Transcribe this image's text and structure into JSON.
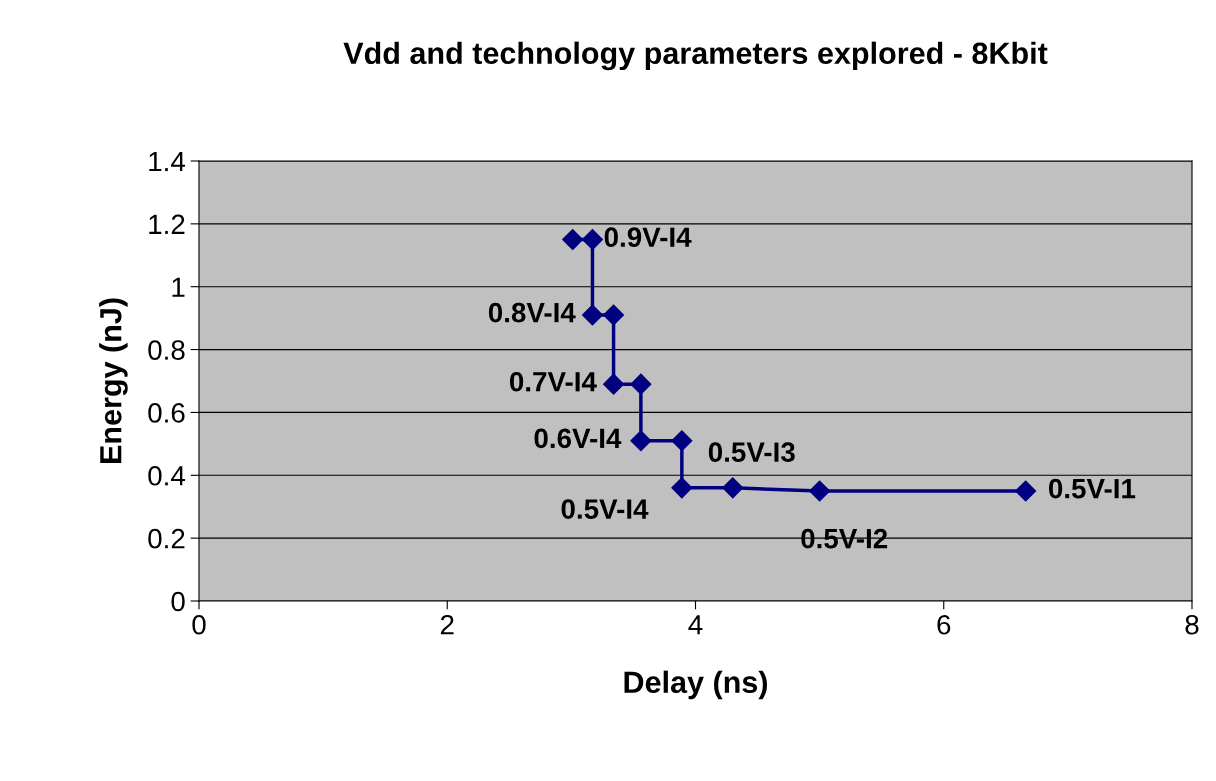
{
  "chart_data": {
    "type": "line",
    "title": "Vdd and technology parameters explored - 8Kbit",
    "xlabel": "Delay (ns)",
    "ylabel": "Energy (nJ)",
    "series": [
      {
        "color": "#000080",
        "x": [
          3.01,
          3.17,
          3.17,
          3.34,
          3.34,
          3.56,
          3.56,
          3.89,
          3.89,
          4.3,
          5.0,
          6.66
        ],
        "values": [
          1.15,
          1.15,
          0.91,
          0.91,
          0.69,
          0.69,
          0.51,
          0.51,
          0.36,
          0.36,
          0.35,
          0.35
        ]
      }
    ],
    "marker": "diamond",
    "xlim": [
      0,
      8
    ],
    "ylim": [
      0,
      1.4
    ],
    "xticks": [
      0,
      2,
      4,
      6,
      8
    ],
    "yticks": [
      0,
      0.2,
      0.4,
      0.6,
      0.8,
      1,
      1.2,
      1.4
    ],
    "grid": "y",
    "legend": false,
    "annotations": [
      {
        "text": "0.9V-I4",
        "x": 3.17,
        "y": 1.15
      },
      {
        "text": "0.8V-I4",
        "x": 3.17,
        "y": 0.91
      },
      {
        "text": "0.7V-I4",
        "x": 3.34,
        "y": 0.69
      },
      {
        "text": "0.6V-I4",
        "x": 3.56,
        "y": 0.51
      },
      {
        "text": "0.5V-I4",
        "x": 3.89,
        "y": 0.36
      },
      {
        "text": "0.5V-I3",
        "x": 4.3,
        "y": 0.36
      },
      {
        "text": "0.5V-I2",
        "x": 5.0,
        "y": 0.35
      },
      {
        "text": "0.5V-I1",
        "x": 6.66,
        "y": 0.35
      }
    ]
  }
}
